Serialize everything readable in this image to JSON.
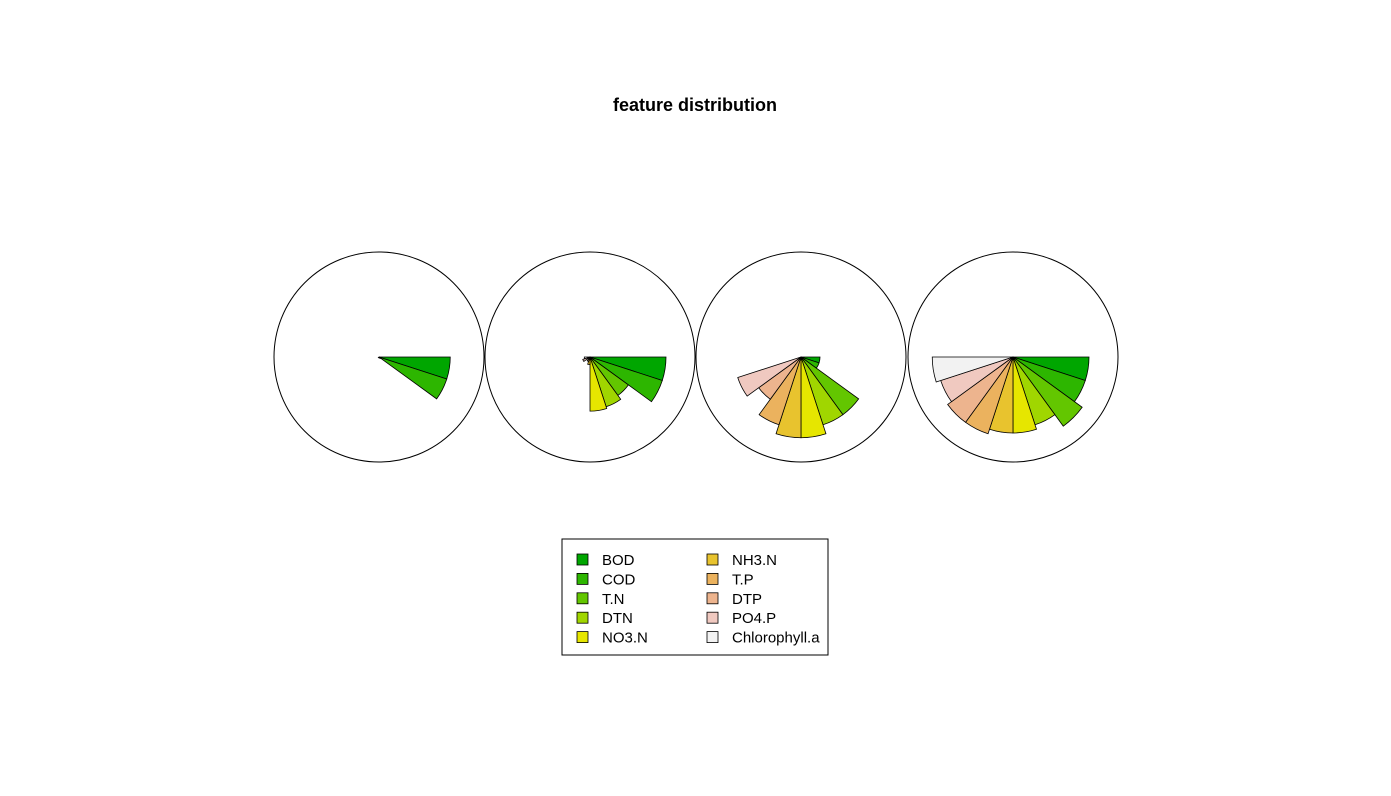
{
  "chart_data": {
    "type": "segment",
    "title": "feature distribution",
    "categories": [
      "BOD",
      "COD",
      "T.N",
      "DTN",
      "NO3.N",
      "NH3.N",
      "T.P",
      "DTP",
      "PO4.P",
      "Chlorophyll.a"
    ],
    "colors": [
      "#00A600",
      "#2DB600",
      "#63C600",
      "#A0D600",
      "#E6E600",
      "#E8C32E",
      "#EBB25E",
      "#EDB48E",
      "#F0C9C0",
      "#F2F2F2"
    ],
    "rlim": [
      0,
      1
    ],
    "segments": [
      {
        "values": [
          0.75,
          0.75,
          0.02,
          0.01,
          0.0,
          0.0,
          0.0,
          0.01,
          0.0,
          0.0
        ]
      },
      {
        "values": [
          0.8,
          0.8,
          0.5,
          0.55,
          0.57,
          0.08,
          0.05,
          0.02,
          0.08,
          0.06
        ]
      },
      {
        "values": [
          0.2,
          0.2,
          0.75,
          0.75,
          0.85,
          0.85,
          0.75,
          0.55,
          0.7,
          0.0
        ]
      },
      {
        "values": [
          0.8,
          0.8,
          0.9,
          0.75,
          0.8,
          0.8,
          0.85,
          0.85,
          0.8,
          0.85
        ]
      }
    ],
    "legend": {
      "position": "bottom",
      "columns": 2
    }
  }
}
